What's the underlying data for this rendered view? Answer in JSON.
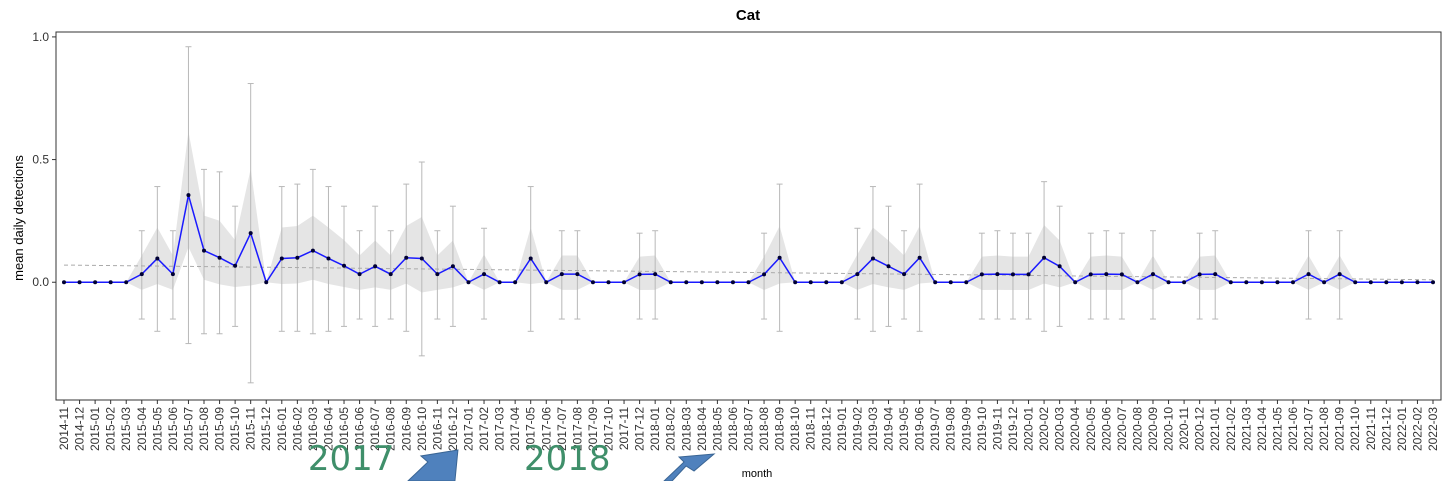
{
  "chart_data": {
    "type": "line",
    "title": "Cat",
    "xlabel": "month",
    "ylabel": "mean daily detections",
    "ylim": [
      -0.48,
      1.02
    ],
    "yticks": [
      "0.0",
      "0.5",
      "1.0"
    ],
    "ytick_values": [
      0.0,
      0.5,
      1.0
    ],
    "grid": false,
    "x": [
      "2014-11",
      "2014-12",
      "2015-01",
      "2015-02",
      "2015-03",
      "2015-04",
      "2015-05",
      "2015-06",
      "2015-07",
      "2015-08",
      "2015-09",
      "2015-10",
      "2015-11",
      "2015-12",
      "2016-01",
      "2016-02",
      "2016-03",
      "2016-04",
      "2016-05",
      "2016-06",
      "2016-07",
      "2016-08",
      "2016-09",
      "2016-10",
      "2016-11",
      "2016-12",
      "2017-01",
      "2017-02",
      "2017-03",
      "2017-04",
      "2017-05",
      "2017-06",
      "2017-07",
      "2017-08",
      "2017-09",
      "2017-10",
      "2017-11",
      "2017-12",
      "2018-01",
      "2018-02",
      "2018-03",
      "2018-04",
      "2018-05",
      "2018-06",
      "2018-07",
      "2018-08",
      "2018-09",
      "2018-10",
      "2018-11",
      "2018-12",
      "2019-01",
      "2019-02",
      "2019-03",
      "2019-04",
      "2019-05",
      "2019-06",
      "2019-07",
      "2019-08",
      "2019-09",
      "2019-10",
      "2019-11",
      "2019-12",
      "2020-01",
      "2020-02",
      "2020-03",
      "2020-04",
      "2020-05",
      "2020-06",
      "2020-07",
      "2020-08",
      "2020-09",
      "2020-10",
      "2020-11",
      "2020-12",
      "2021-01",
      "2021-02",
      "2021-03",
      "2021-04",
      "2021-05",
      "2021-06",
      "2021-07",
      "2021-08",
      "2021-09",
      "2021-10",
      "2021-11",
      "2021-12",
      "2022-01",
      "2022-02",
      "2022-03"
    ],
    "series": [
      {
        "name": "",
        "color": "#1a1aff",
        "values": [
          0,
          0,
          0,
          0,
          0,
          0.033,
          0.097,
          0.033,
          0.355,
          0.129,
          0.1,
          0.067,
          0.2,
          0,
          0.097,
          0.1,
          0.129,
          0.097,
          0.067,
          0.033,
          0.065,
          0.033,
          0.1,
          0.097,
          0.033,
          0.065,
          0,
          0.033,
          0,
          0,
          0.097,
          0,
          0.033,
          0.033,
          0,
          0,
          0,
          0.032,
          0.033,
          0,
          0,
          0,
          0,
          0,
          0,
          0.032,
          0.1,
          0,
          0,
          0,
          0,
          0.033,
          0.097,
          0.065,
          0.033,
          0.1,
          0,
          0,
          0,
          0.032,
          0.033,
          0.032,
          0.032,
          0.1,
          0.065,
          0,
          0.032,
          0.033,
          0.032,
          0,
          0.033,
          0,
          0,
          0.032,
          0.033,
          0,
          0,
          0,
          0,
          0,
          0.033,
          0,
          0.033,
          0,
          0,
          0,
          0,
          0,
          0
        ],
        "error_upper": [
          0,
          0,
          0,
          0,
          0,
          0.21,
          0.39,
          0.21,
          0.96,
          0.46,
          0.45,
          0.31,
          0.81,
          0,
          0.39,
          0.4,
          0.46,
          0.39,
          0.31,
          0.21,
          0.31,
          0.21,
          0.4,
          0.49,
          0.21,
          0.31,
          0,
          0.22,
          0,
          0,
          0.39,
          0,
          0.21,
          0.21,
          0,
          0,
          0,
          0.2,
          0.21,
          0,
          0,
          0,
          0,
          0,
          0,
          0.2,
          0.4,
          0,
          0,
          0,
          0,
          0.22,
          0.39,
          0.31,
          0.21,
          0.4,
          0,
          0,
          0,
          0.2,
          0.21,
          0.2,
          0.2,
          0.41,
          0.31,
          0,
          0.2,
          0.21,
          0.2,
          0,
          0.21,
          0,
          0,
          0.2,
          0.21,
          0,
          0,
          0,
          0,
          0,
          0.21,
          0,
          0.21,
          0,
          0,
          0,
          0,
          0,
          0
        ],
        "error_lower": [
          0,
          0,
          0,
          0,
          0,
          -0.15,
          -0.2,
          -0.15,
          -0.25,
          -0.21,
          -0.21,
          -0.18,
          -0.41,
          0,
          -0.2,
          -0.2,
          -0.21,
          -0.2,
          -0.18,
          -0.15,
          -0.18,
          -0.15,
          -0.2,
          -0.3,
          -0.15,
          -0.18,
          0,
          -0.15,
          0,
          0,
          -0.2,
          0,
          -0.15,
          -0.15,
          0,
          0,
          0,
          -0.15,
          -0.15,
          0,
          0,
          0,
          0,
          0,
          0,
          -0.15,
          -0.2,
          0,
          0,
          0,
          0,
          -0.15,
          -0.2,
          -0.18,
          -0.15,
          -0.2,
          0,
          0,
          0,
          -0.15,
          -0.15,
          -0.15,
          -0.15,
          -0.2,
          -0.18,
          0,
          -0.15,
          -0.15,
          -0.15,
          0,
          -0.15,
          0,
          0,
          -0.15,
          -0.15,
          0,
          0,
          0,
          0,
          0,
          -0.15,
          0,
          -0.15,
          0,
          0,
          0,
          0,
          0,
          0
        ]
      }
    ],
    "trend_line": {
      "start": 0.07,
      "end": 0.01,
      "color": "#aaaaaa"
    },
    "band_color": "#e5e5e5",
    "annotations": [
      {
        "text": "2017",
        "near": "2016-12",
        "color": "#3f8f6a"
      },
      {
        "text": "2018",
        "near": "2017-11",
        "color": "#3f8f6a"
      }
    ],
    "arrow_color": "#4f81bd"
  }
}
